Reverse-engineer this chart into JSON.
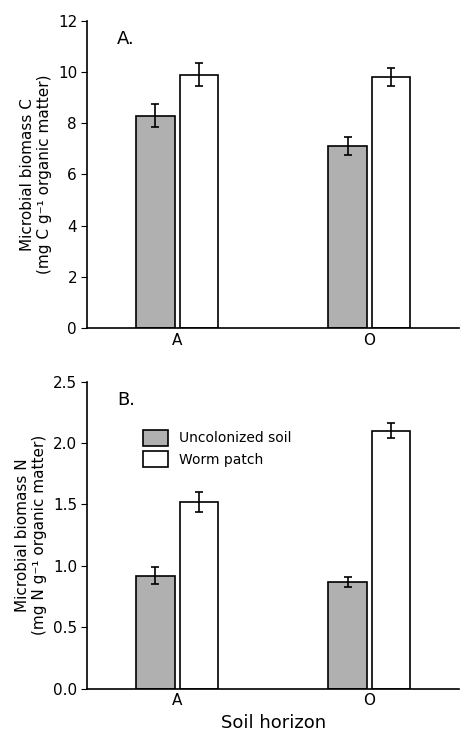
{
  "panel_A": {
    "label": "A.",
    "categories": [
      "A",
      "O"
    ],
    "uncolonized_values": [
      8.3,
      7.1
    ],
    "uncolonized_errors": [
      0.45,
      0.35
    ],
    "worm_values": [
      9.9,
      9.8
    ],
    "worm_errors": [
      0.45,
      0.35
    ],
    "ylabel_line1": "Microbial biomass C",
    "ylabel_line2": "(mg C g⁻¹ organic matter)",
    "ylim": [
      0,
      12
    ],
    "yticks": [
      0,
      2,
      4,
      6,
      8,
      10,
      12
    ]
  },
  "panel_B": {
    "label": "B.",
    "categories": [
      "A",
      "O"
    ],
    "uncolonized_values": [
      0.92,
      0.87
    ],
    "uncolonized_errors": [
      0.07,
      0.04
    ],
    "worm_values": [
      1.52,
      2.1
    ],
    "worm_errors": [
      0.08,
      0.06
    ],
    "ylabel_line1": "Microbial biomass N",
    "ylabel_line2": "(mg N g⁻¹ organic matter)",
    "ylim": [
      0.0,
      2.5
    ],
    "yticks": [
      0.0,
      0.5,
      1.0,
      1.5,
      2.0,
      2.5
    ]
  },
  "xlabel": "Soil horizon",
  "bar_width": 0.3,
  "uncolonized_color": "#b0b0b0",
  "worm_color": "#ffffff",
  "bar_edge_color": "#000000",
  "legend_labels": [
    "Uncolonized soil",
    "Worm patch"
  ],
  "background_color": "#ffffff",
  "font_size": 11,
  "label_font_size": 13,
  "group_centers": [
    1.0,
    2.5
  ]
}
